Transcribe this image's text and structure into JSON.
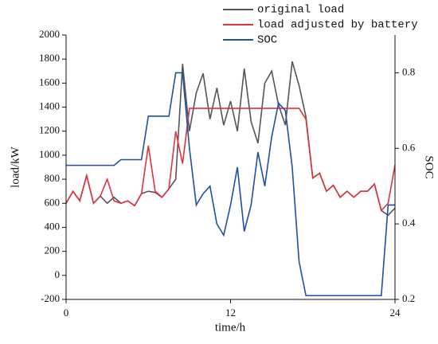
{
  "chart_data": {
    "type": "line",
    "xlabel": "time/h",
    "ylabel": "load/kW",
    "y2label": "SOC",
    "x": [
      0,
      0.5,
      1,
      1.5,
      2,
      2.5,
      3,
      3.5,
      4,
      4.5,
      5,
      5.5,
      6,
      6.5,
      7,
      7.5,
      8,
      8.5,
      9,
      9.5,
      10,
      10.5,
      11,
      11.5,
      12,
      12.5,
      13,
      13.5,
      14,
      14.5,
      15,
      15.5,
      16,
      16.5,
      17,
      17.5,
      18,
      18.5,
      19,
      19.5,
      20,
      20.5,
      21,
      21.5,
      22,
      22.5,
      23,
      23.5,
      24
    ],
    "series": [
      {
        "name": "original load",
        "color": "#555555",
        "values": [
          600,
          700,
          620,
          830,
          600,
          660,
          600,
          650,
          600,
          620,
          580,
          680,
          700,
          690,
          650,
          720,
          800,
          1760,
          1200,
          1520,
          1680,
          1300,
          1560,
          1250,
          1450,
          1200,
          1720,
          1280,
          1100,
          1600,
          1700,
          1420,
          1250,
          1780,
          1580,
          1320,
          810,
          850,
          700,
          750,
          650,
          700,
          650,
          700,
          700,
          760,
          540,
          500,
          560
        ]
      },
      {
        "name": "load adjusted by battery",
        "color": "#e0333c",
        "values": [
          600,
          700,
          620,
          830,
          600,
          660,
          800,
          620,
          600,
          620,
          580,
          680,
          1080,
          700,
          650,
          720,
          1200,
          930,
          1390,
          1390,
          1390,
          1390,
          1390,
          1390,
          1390,
          1390,
          1390,
          1390,
          1390,
          1390,
          1390,
          1390,
          1390,
          1390,
          1390,
          1300,
          810,
          850,
          700,
          750,
          650,
          700,
          650,
          700,
          700,
          760,
          540,
          600,
          920
        ]
      },
      {
        "name": "SOC",
        "color": "#1f4fa8",
        "axis": "y2",
        "values": [
          0.555,
          0.555,
          0.555,
          0.555,
          0.555,
          0.555,
          0.555,
          0.555,
          0.57,
          0.57,
          0.57,
          0.57,
          0.685,
          0.685,
          0.685,
          0.685,
          0.8,
          0.8,
          0.6,
          0.45,
          0.48,
          0.5,
          0.4,
          0.37,
          0.45,
          0.55,
          0.38,
          0.45,
          0.59,
          0.5,
          0.63,
          0.72,
          0.7,
          0.55,
          0.3,
          0.21,
          0.21,
          0.21,
          0.21,
          0.21,
          0.21,
          0.21,
          0.21,
          0.21,
          0.21,
          0.21,
          0.21,
          0.45,
          0.45
        ]
      }
    ],
    "xlim": [
      0,
      24
    ],
    "xticks": [
      0,
      12,
      24
    ],
    "ylim": [
      -200,
      2000
    ],
    "yticks": [
      -200,
      0,
      200,
      400,
      600,
      800,
      1000,
      1200,
      1400,
      1600,
      1800,
      2000
    ],
    "y2lim": [
      0.2,
      0.9
    ],
    "y2ticks": [
      0.2,
      0.4,
      0.6,
      0.8
    ],
    "legend": "top-right"
  }
}
